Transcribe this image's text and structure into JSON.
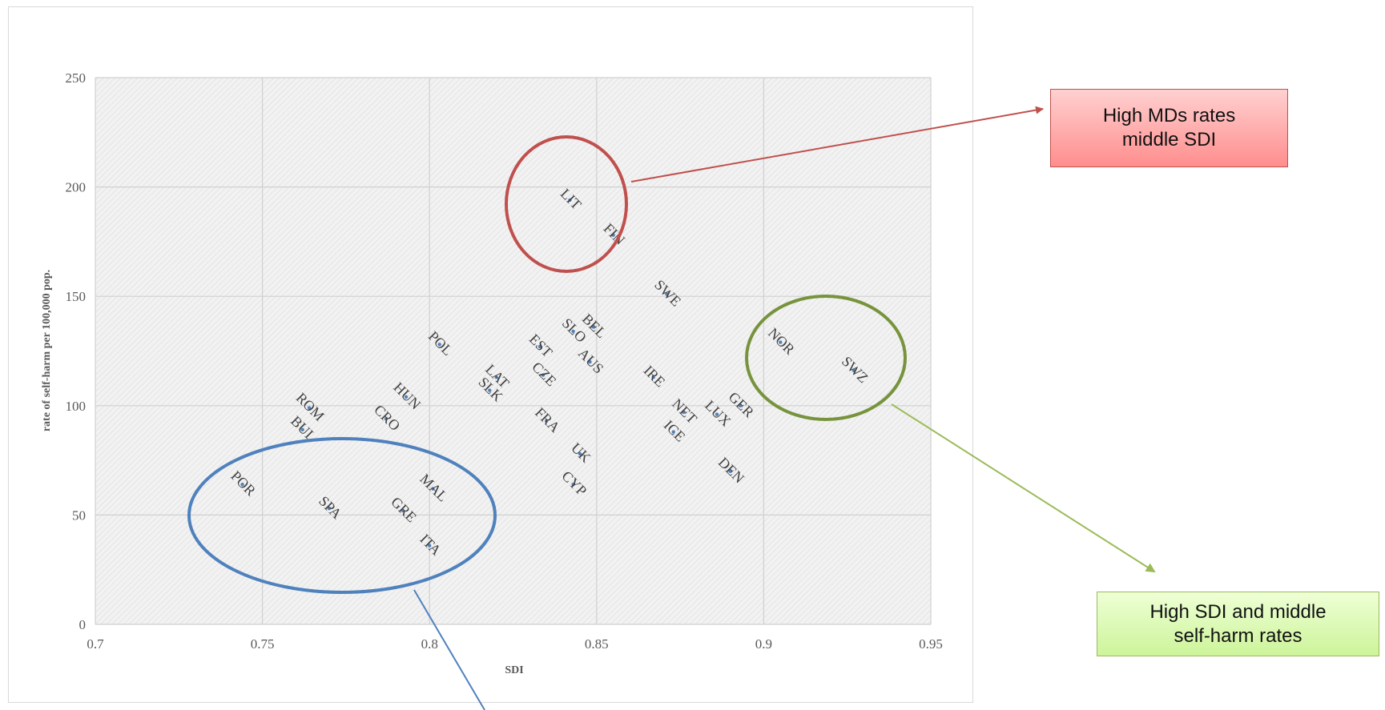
{
  "chart_data": {
    "type": "scatter",
    "xlabel": "SDI",
    "ylabel": "rate of self-harm per 100,000 pop.",
    "xlim": [
      0.7,
      0.95
    ],
    "ylim": [
      0,
      250
    ],
    "x_ticks": [
      "0.7",
      "0.75",
      "0.8",
      "0.85",
      "0.9",
      "0.95"
    ],
    "y_ticks": [
      "0",
      "50",
      "100",
      "150",
      "200",
      "250"
    ],
    "grid": true,
    "points": [
      {
        "label": "LIT",
        "x": 0.842,
        "y": 194
      },
      {
        "label": "FIN",
        "x": 0.855,
        "y": 178
      },
      {
        "label": "SWE",
        "x": 0.871,
        "y": 151
      },
      {
        "label": "BEL",
        "x": 0.849,
        "y": 136
      },
      {
        "label": "SLO",
        "x": 0.843,
        "y": 134
      },
      {
        "label": "EST",
        "x": 0.833,
        "y": 127
      },
      {
        "label": "AUS",
        "x": 0.848,
        "y": 120
      },
      {
        "label": "POL",
        "x": 0.803,
        "y": 128
      },
      {
        "label": "LAT",
        "x": 0.82,
        "y": 113
      },
      {
        "label": "CZE",
        "x": 0.834,
        "y": 114
      },
      {
        "label": "SLK",
        "x": 0.818,
        "y": 107
      },
      {
        "label": "IRE",
        "x": 0.867,
        "y": 113
      },
      {
        "label": "HUN",
        "x": 0.793,
        "y": 104
      },
      {
        "label": "GER",
        "x": 0.893,
        "y": 100
      },
      {
        "label": "NET",
        "x": 0.876,
        "y": 97
      },
      {
        "label": "LUX",
        "x": 0.886,
        "y": 96
      },
      {
        "label": "FRA",
        "x": 0.835,
        "y": 93
      },
      {
        "label": "ROM",
        "x": 0.764,
        "y": 99
      },
      {
        "label": "CRO",
        "x": 0.787,
        "y": 94
      },
      {
        "label": "BUL",
        "x": 0.762,
        "y": 89
      },
      {
        "label": "ICE",
        "x": 0.873,
        "y": 88
      },
      {
        "label": "UK",
        "x": 0.845,
        "y": 78
      },
      {
        "label": "DEN",
        "x": 0.89,
        "y": 70
      },
      {
        "label": "CYP",
        "x": 0.843,
        "y": 64
      },
      {
        "label": "MAL",
        "x": 0.801,
        "y": 62
      },
      {
        "label": "POR",
        "x": 0.744,
        "y": 64
      },
      {
        "label": "SPA",
        "x": 0.77,
        "y": 53
      },
      {
        "label": "GRE",
        "x": 0.792,
        "y": 52
      },
      {
        "label": "ITA",
        "x": 0.8,
        "y": 36
      },
      {
        "label": "NOR",
        "x": 0.905,
        "y": 129
      },
      {
        "label": "SWZ",
        "x": 0.927,
        "y": 116
      }
    ]
  },
  "annotations": {
    "red_callout": {
      "line1": "High MDs rates",
      "line2": "middle SDI",
      "color": "#c0504d"
    },
    "green_callout": {
      "line1": "High SDI and middle",
      "line2": "self-harm rates",
      "color": "#9bbb59"
    },
    "blue_circle": {
      "color": "#4f81bd"
    }
  },
  "colors": {
    "plot_bg": "#f2f2f2",
    "hatch": "#e0e0e0",
    "grid": "#d0d0d0",
    "marker": "#4f81bd"
  }
}
